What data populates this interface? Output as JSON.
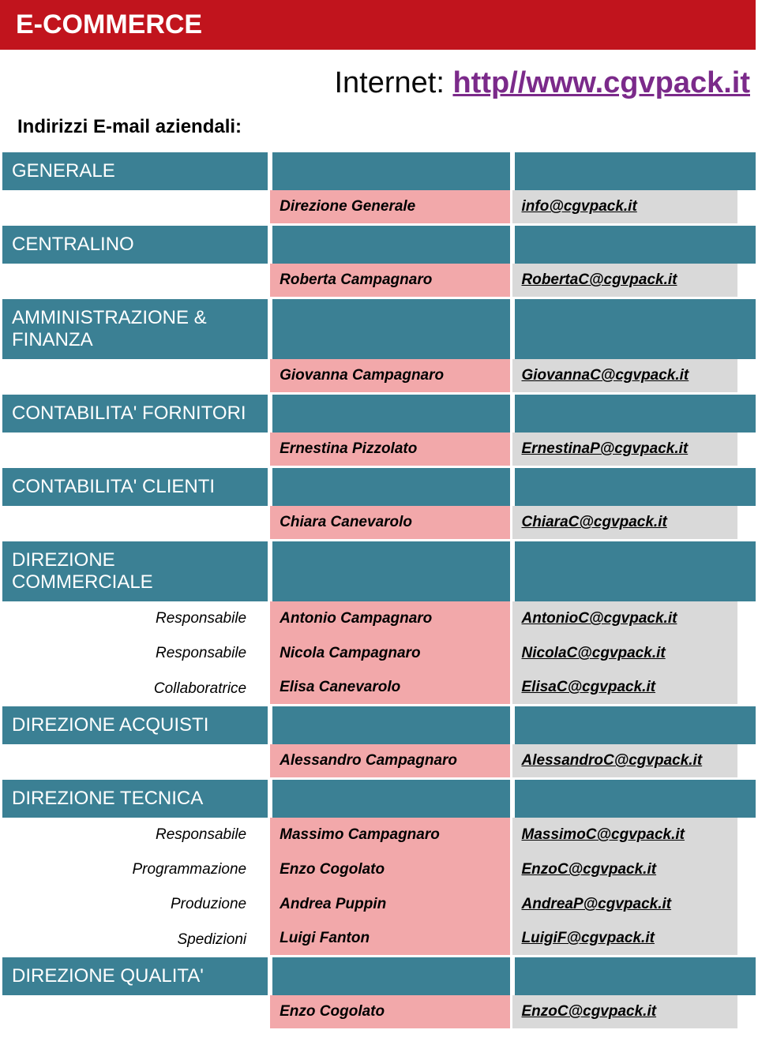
{
  "colors": {
    "header_bg": "#c1141d",
    "header_text": "#ffffff",
    "teal": "#3b8094",
    "pink": "#f2a8aa",
    "gray": "#d9d9d9",
    "url": "#7b2a8a"
  },
  "header": "E-COMMERCE",
  "internet_label": "Internet: ",
  "internet_url": "http//www.cgvpack.it",
  "subhead": "Indirizzi E-mail aziendali:",
  "sections": [
    {
      "title": "GENERALE",
      "rows": [
        {
          "role": "",
          "name": "Direzione Generale",
          "email": "info@cgvpack.it"
        }
      ]
    },
    {
      "title": "CENTRALINO",
      "rows": [
        {
          "role": "",
          "name": "Roberta Campagnaro",
          "email": "RobertaC@cgvpack.it"
        }
      ]
    },
    {
      "title": "AMMINISTRAZIONE & FINANZA",
      "rows": [
        {
          "role": "",
          "name": "Giovanna Campagnaro",
          "email": "GiovannaC@cgvpack.it"
        }
      ]
    },
    {
      "title": "CONTABILITA' FORNITORI",
      "rows": [
        {
          "role": "",
          "name": "Ernestina Pizzolato",
          "email": "ErnestinaP@cgvpack.it"
        }
      ]
    },
    {
      "title": "CONTABILITA' CLIENTI",
      "rows": [
        {
          "role": "",
          "name": "Chiara Canevarolo",
          "email": "ChiaraC@cgvpack.it"
        }
      ]
    },
    {
      "title": "DIREZIONE COMMERCIALE",
      "rows": [
        {
          "role": "Responsabile",
          "name": "Antonio Campagnaro",
          "email": "AntonioC@cgvpack.it"
        },
        {
          "role": "Responsabile",
          "name": "Nicola Campagnaro",
          "email": "NicolaC@cgvpack.it"
        },
        {
          "role": "Collaboratrice",
          "name": "Elisa Canevarolo",
          "email": "ElisaC@cgvpack.it"
        }
      ]
    },
    {
      "title": "DIREZIONE ACQUISTI",
      "rows": [
        {
          "role": "",
          "name": "Alessandro Campagnaro",
          "email": "AlessandroC@cgvpack.it"
        }
      ]
    },
    {
      "title": "DIREZIONE TECNICA",
      "rows": [
        {
          "role": "Responsabile",
          "name": "Massimo Campagnaro",
          "email": "MassimoC@cgvpack.it"
        },
        {
          "role": "Programmazione",
          "name": "Enzo Cogolato",
          "email": "EnzoC@cgvpack.it"
        },
        {
          "role": "Produzione",
          "name": "Andrea Puppin",
          "email": "AndreaP@cgvpack.it"
        },
        {
          "role": "Spedizioni",
          "name": "Luigi Fanton",
          "email": "LuigiF@cgvpack.it"
        }
      ]
    },
    {
      "title": "DIREZIONE  QUALITA'",
      "rows": [
        {
          "role": "",
          "name": "Enzo Cogolato",
          "email": "EnzoC@cgvpack.it"
        }
      ]
    }
  ]
}
